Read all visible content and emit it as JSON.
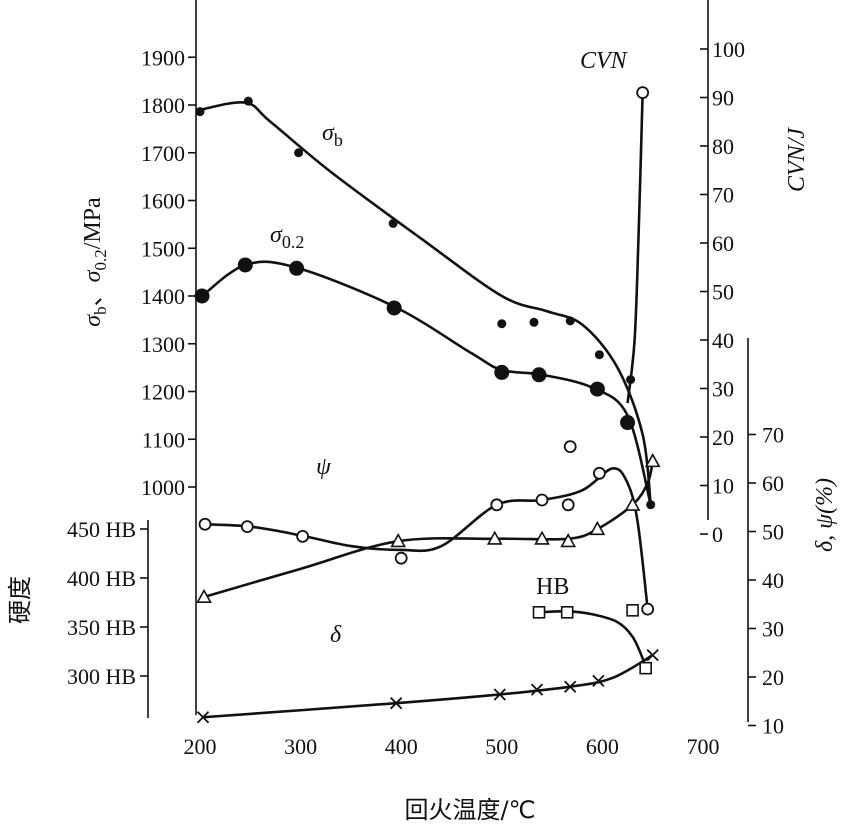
{
  "chart_data": {
    "type": "scatter",
    "xlabel": "回火温度/℃",
    "xlim": [
      200,
      700
    ],
    "x_ticks": [
      "200",
      "300",
      "400",
      "500",
      "600",
      "700"
    ],
    "axes": {
      "strength": {
        "label": "σb、σ0.2/MPa",
        "label_parts": {
          "sym": "σ",
          "sub1": "b",
          "sep": "、",
          "sub2": "0.2",
          "unit": "/MPa"
        },
        "ticks": [
          "1000",
          "1100",
          "1200",
          "1300",
          "1400",
          "1500",
          "1600",
          "1700",
          "1800",
          "1900"
        ]
      },
      "cvn": {
        "label": "CVN/J",
        "ticks": [
          "0",
          "10",
          "20",
          "30",
          "40",
          "50",
          "60",
          "70",
          "80",
          "90",
          "100"
        ]
      },
      "elong": {
        "label": "δ, ψ(%)",
        "ticks": [
          "10",
          "20",
          "30",
          "40",
          "50",
          "60",
          "70"
        ]
      },
      "hardness": {
        "label": "硬度",
        "ticks": [
          "300 HB",
          "350 HB",
          "400 HB",
          "450 HB"
        ]
      }
    },
    "series": [
      {
        "name": "σb",
        "label_sym": "σ",
        "label_sub": "b",
        "axis": "strength",
        "marker": "dot",
        "x": [
          200,
          248,
          298,
          392,
          500,
          532,
          568,
          597,
          628,
          648
        ],
        "y": [
          1786,
          1808,
          1700,
          1552,
          1342,
          1345,
          1348,
          1277,
          1225,
          963
        ]
      },
      {
        "name": "σ0.2",
        "label_sym": "σ",
        "label_sub": "0.2",
        "axis": "strength",
        "marker": "big-dot",
        "x": [
          202,
          245,
          296,
          393,
          500,
          537,
          595,
          625
        ],
        "y": [
          1400,
          1465,
          1458,
          1375,
          1240,
          1235,
          1205,
          1135
        ]
      },
      {
        "name": "CVN",
        "axis": "cvn",
        "marker": "open-circle",
        "x": [
          640
        ],
        "y": [
          91
        ]
      },
      {
        "name": "ψ",
        "axis": "elong",
        "marker": "open-circle",
        "x": [
          205,
          247,
          302,
          400,
          495,
          540,
          566,
          568,
          597,
          645
        ],
        "y": [
          51.5,
          51.0,
          49.0,
          44.5,
          55.5,
          56.5,
          55.5,
          67.5,
          62.0,
          34.0
        ]
      },
      {
        "name": "δ",
        "axis": "elong",
        "marker": "cross",
        "x": [
          203,
          395,
          498,
          535,
          568,
          596,
          650
        ],
        "y": [
          11.7,
          14.6,
          16.4,
          17.4,
          18.0,
          19.2,
          24.5
        ]
      },
      {
        "name": "δ",
        "axis": "elong",
        "marker": "triangle",
        "x": [
          204,
          397,
          493,
          540,
          566,
          595,
          630,
          650
        ],
        "y": [
          36.5,
          48.0,
          48.5,
          48.5,
          48.0,
          50.5,
          55.5,
          64.5
        ]
      },
      {
        "name": "HB",
        "axis": "hardness",
        "marker": "square",
        "x": [
          537,
          565,
          630,
          643
        ],
        "y": [
          365,
          365,
          367,
          308
        ]
      }
    ]
  }
}
